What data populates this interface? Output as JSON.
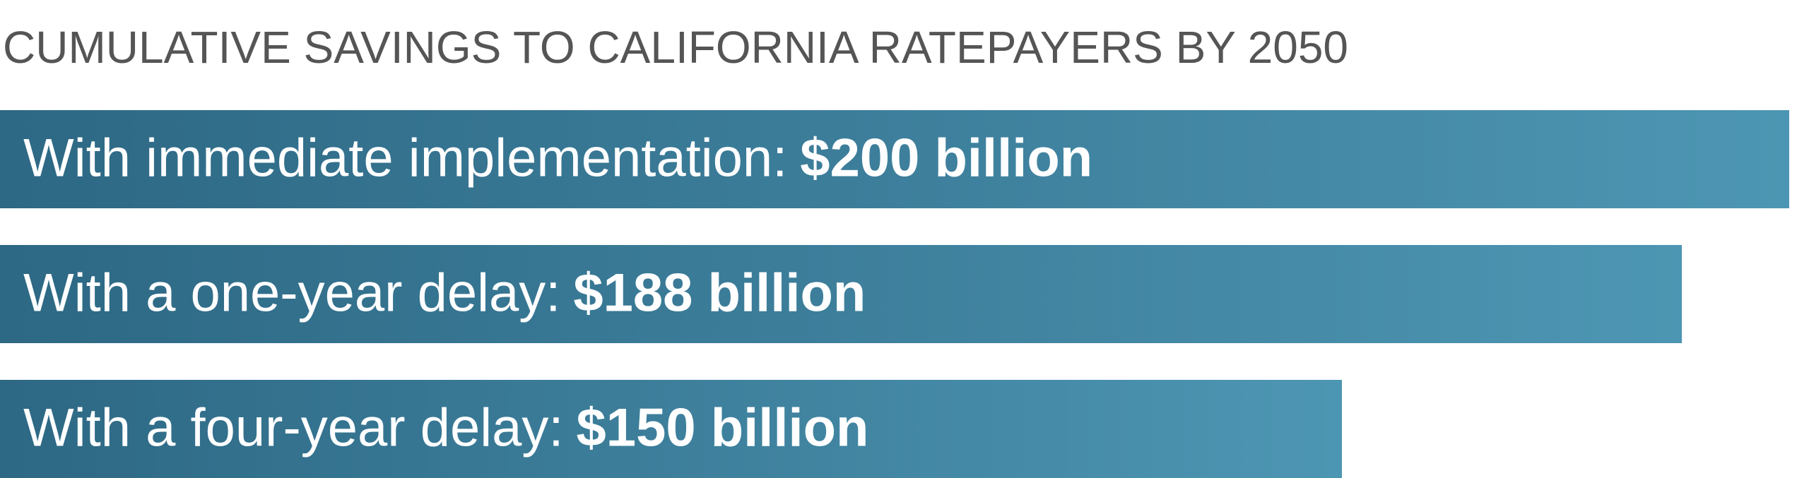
{
  "chart_data": {
    "type": "bar",
    "orientation": "horizontal",
    "title": "CUMULATIVE SAVINGS TO CALIFORNIA RATEPAYERS BY 2050",
    "categories": [
      "With immediate implementation:",
      "With a one-year delay:",
      "With a four-year delay:"
    ],
    "values": [
      200,
      188,
      150
    ],
    "value_labels": [
      "$200 billion",
      "$188 billion",
      "$150 billion"
    ],
    "color": "#3d7d9b"
  }
}
